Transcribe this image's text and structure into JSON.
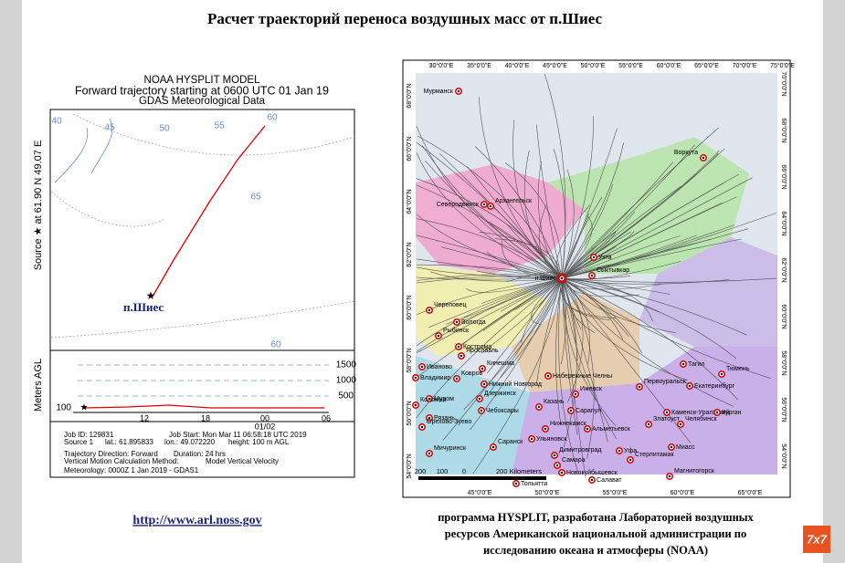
{
  "title": "Расчет траекторий  переноса воздушных масс от п.Шиес",
  "hysplit": {
    "header": [
      "NOAA HYSPLIT MODEL",
      "Forward trajectory starting at 0600 UTC 01 Jan 19",
      "GDAS Meteorological Data"
    ],
    "source_label": "Source ★ at 61.90 N  49.07 E",
    "map_labels": [
      "40",
      "45",
      "50",
      "55",
      "60",
      "65",
      "60"
    ],
    "site": "п.Шиес",
    "height_axis": "Meters AGL",
    "height_ticks": [
      "1500",
      "1000",
      "500",
      "100"
    ],
    "time_ticks": [
      "12",
      "18",
      "00",
      "06"
    ],
    "date": "01/02",
    "info": [
      [
        "Job ID: 129831",
        "Job Start: Mon Mar 11 06:58:18 UTC 2019"
      ],
      [
        "Source 1",
        "lat.: 61.895833",
        "lon.: 49.072220",
        "height: 100 m AGL"
      ],
      [
        "Trajectory Direction: Forward",
        "Duration: 24 hrs"
      ],
      [
        "Vertical Motion Calculation Method:",
        "Model Vertical Velocity"
      ],
      [
        "Meteorology: 0000Z  1 Jan 2019 - GDAS1"
      ]
    ]
  },
  "url": "http://www.arl.noss.gov",
  "map": {
    "top_lon": [
      "30°0'0\"E",
      "35°0'0\"E",
      "40°0'0\"E",
      "45°0'0\"E",
      "50°0'0\"E",
      "55°0'0\"E",
      "60°0'0\"E",
      "65°0'0\"E",
      "70°0'0\"E",
      "75°0'0\"E"
    ],
    "bottom_lon": [
      "45°0'0\"E",
      "50°0'0\"E",
      "55°0'0\"E",
      "60°0'0\"E",
      "65°0'0\"E"
    ],
    "right_lat": [
      "70°0'0\"N",
      "68°0'0\"N",
      "66°0'0\"N",
      "64°0'0\"N",
      "62°0'0\"N",
      "60°0'0\"N",
      "58°0'0\"N",
      "56°0'0\"N",
      "54°0'0\"N"
    ],
    "left_lat": [
      "68°0'0\"N",
      "66°0'0\"N",
      "64°0'0\"N",
      "62°0'0\"N",
      "60°0'0\"N",
      "58°0'0\"N",
      "56°0'0\"N",
      "54°0'0\"N"
    ],
    "cities": [
      "Мурманск",
      "Воркута",
      "Северодвинск",
      "Архангельск",
      "Ухта",
      "Сыктывкар",
      "п.Шиес",
      "Череповец",
      "Вологда",
      "Рыбинск",
      "Кострома",
      "Ярославль",
      "Иваново",
      "Кинешма",
      "Владимир",
      "Ковров",
      "Нижний Новгород",
      "Дзержинск",
      "Муром",
      "Коломна",
      "Рязань",
      "Орехово-Зуево",
      "Чебоксары",
      "Казань",
      "Набережные Челны",
      "Нижнекамск",
      "Альметьевск",
      "Ижевск",
      "Сарапул",
      "Саранск",
      "Ульяновск",
      "Димитровград",
      "Тольятти",
      "Самара",
      "Новокуйбышевск",
      "Мичуринск",
      "Уфа",
      "Стерлитамак",
      "Салават",
      "Магнитогорск",
      "Тагил",
      "Первоуральск",
      "Екатеринбург",
      "Тюмень",
      "Каменск-Уральский",
      "Челябинск",
      "Курган",
      "Златоуст",
      "Миасс"
    ],
    "scale": [
      "200",
      "100",
      "0",
      "200 Kilometers"
    ]
  },
  "caption": [
    "программа HYSPLIT,  разработана  Лабораторией воздушных",
    "ресурсов Американской национальной администрации по",
    "исследованию океана и атмосферы (NOAA)"
  ],
  "logo": "7x7"
}
